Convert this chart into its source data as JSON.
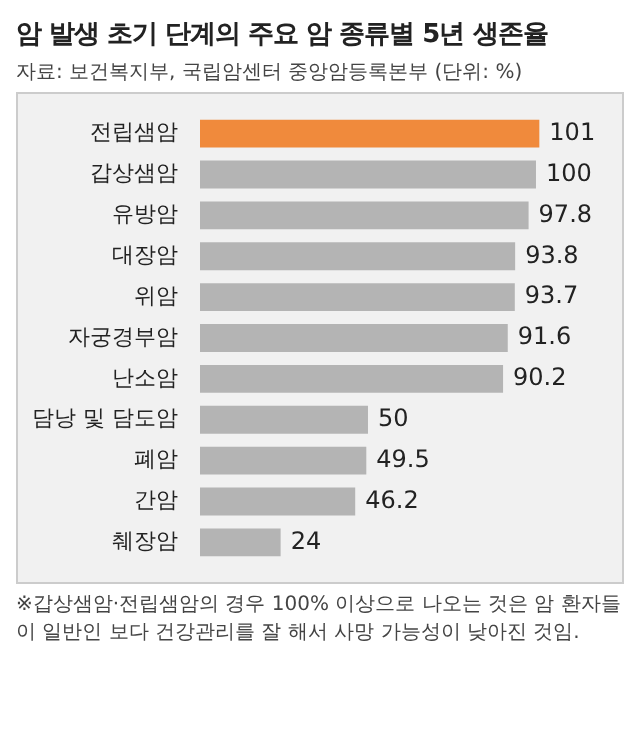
{
  "chart_data": {
    "type": "bar",
    "orientation": "horizontal",
    "title": "암 발생 초기 단계의 주요 암 종류별 5년 생존율",
    "subtitle": "자료: 보건복지부, 국립암센터 중앙암등록본부 (단위: %)",
    "categories": [
      "전립샘암",
      "갑상샘암",
      "유방암",
      "대장암",
      "위암",
      "자궁경부암",
      "난소암",
      "담낭 및 담도암",
      "폐암",
      "간암",
      "췌장암"
    ],
    "values": [
      101,
      100,
      97.8,
      93.8,
      93.7,
      91.6,
      90.2,
      50,
      49.5,
      46.2,
      24
    ],
    "colors": [
      "#f08a3c",
      "#b4b4b4",
      "#b4b4b4",
      "#b4b4b4",
      "#b4b4b4",
      "#b4b4b4",
      "#b4b4b4",
      "#b4b4b4",
      "#b4b4b4",
      "#b4b4b4",
      "#b4b4b4"
    ],
    "data_labels": true,
    "legend": false,
    "annotations": [
      "※갑상샘암·전립샘암의 경우 100% 이상으로 나오는 것은 암 환자들이 일반인 보다 건강관리를 잘 해서 사망 가능성이 낮아진 것임."
    ]
  }
}
